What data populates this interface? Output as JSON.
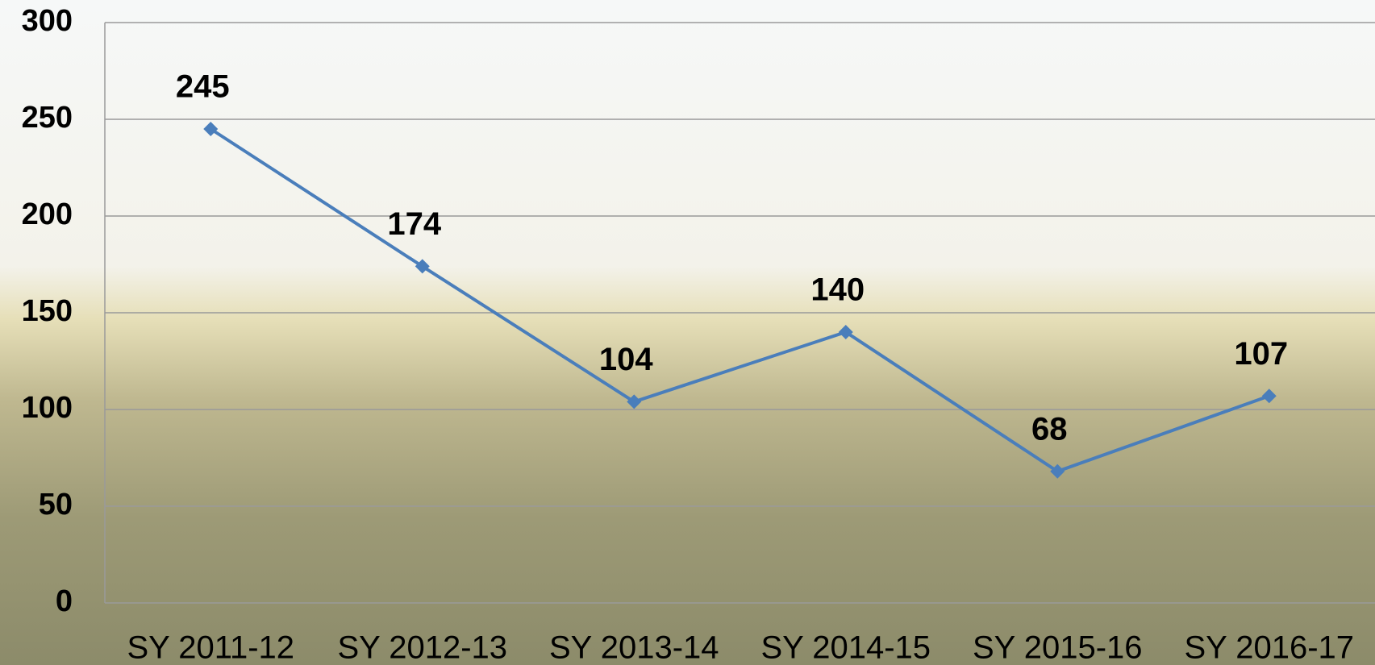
{
  "chart_data": {
    "type": "line",
    "categories": [
      "SY 2011-12",
      "SY 2012-13",
      "SY 2013-14",
      "SY 2014-15",
      "SY 2015-16",
      "SY 2016-17"
    ],
    "series": [
      {
        "color": "#4a7ebb",
        "values": [
          245,
          174,
          104,
          140,
          68,
          107
        ]
      }
    ],
    "ylim": [
      0,
      300
    ],
    "yticks": [
      0,
      50,
      100,
      150,
      200,
      250,
      300
    ],
    "grid": true
  }
}
